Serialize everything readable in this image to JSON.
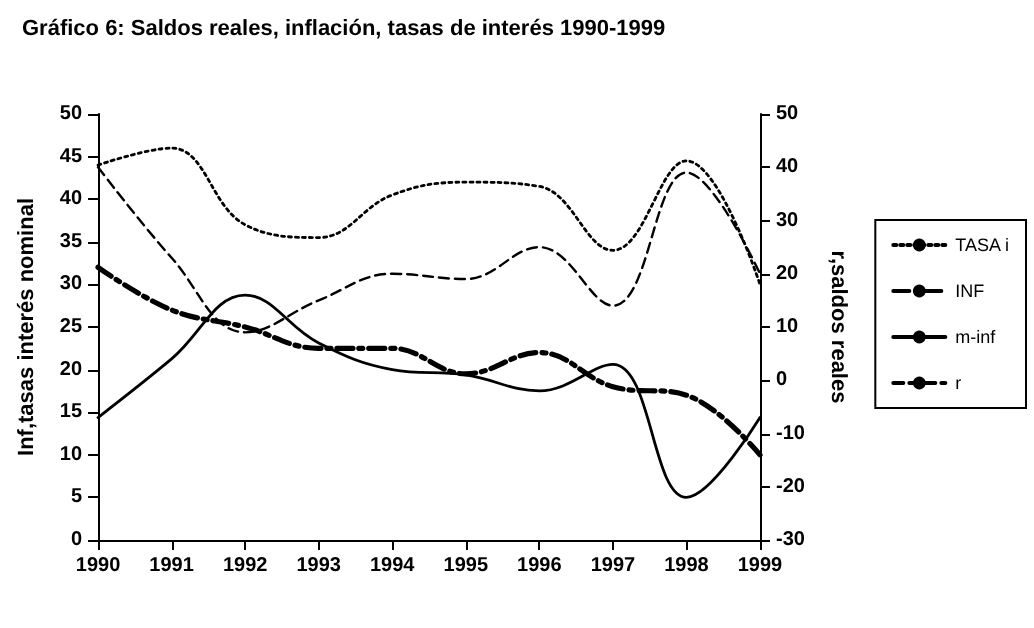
{
  "chart_data": {
    "type": "line",
    "title": "Gráfico 6: Saldos reales, inflación, tasas de interés 1990-1999",
    "ylabel": "Inf,tasas interés nominal",
    "y2label": "r,saldos reales",
    "x": [
      1990,
      1991,
      1992,
      1993,
      1994,
      1995,
      1996,
      1997,
      1998,
      1999
    ],
    "xlim": [
      1990,
      1999
    ],
    "xticks": [
      1990,
      1991,
      1992,
      1993,
      1994,
      1995,
      1996,
      1997,
      1998,
      1999
    ],
    "ylim": [
      0,
      50
    ],
    "yticks": [
      0,
      5,
      10,
      15,
      20,
      25,
      30,
      35,
      40,
      45,
      50
    ],
    "y2lim": [
      -30,
      50
    ],
    "y2ticks": [
      -30,
      -20,
      -10,
      0,
      10,
      20,
      30,
      40,
      50
    ],
    "series": [
      {
        "name": "TASA i",
        "color": "#000000",
        "line_style": "dotted",
        "values": [
          44,
          46,
          37,
          35.5,
          40.5,
          42,
          41.5,
          34,
          44.5,
          30
        ]
      },
      {
        "name": "INF",
        "color": "#000000",
        "line_style": "dashdot",
        "values": [
          32,
          27,
          25,
          22.5,
          22.5,
          19.5,
          22,
          18,
          17,
          10
        ]
      },
      {
        "name": "m-inf",
        "color": "#000000",
        "line_style": "solid",
        "axis": "y2",
        "values": [
          -7,
          4,
          16,
          7,
          2,
          1,
          -2,
          3,
          -22,
          -7
        ]
      },
      {
        "name": "r",
        "color": "#000000",
        "line_style": "dashed",
        "axis": "y2",
        "values": [
          40,
          23,
          9,
          15,
          20,
          19,
          25,
          14,
          39,
          20
        ]
      }
    ],
    "marker": "none",
    "grid": false,
    "legend": "right"
  }
}
